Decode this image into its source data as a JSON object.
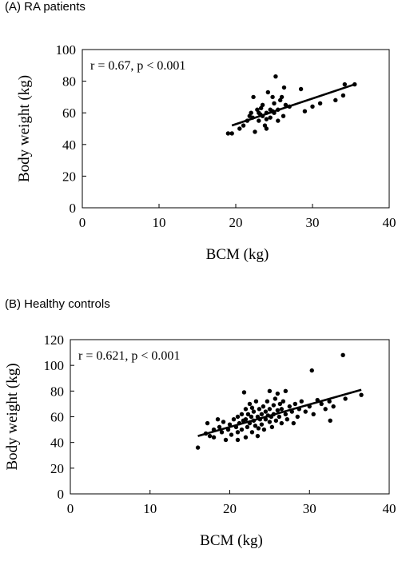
{
  "chart_data": [
    {
      "type": "scatter",
      "panel_label": "(A) RA patients",
      "xlabel": "BCM (kg)",
      "ylabel": "Body weight (kg)",
      "xlim": [
        0,
        40
      ],
      "ylim": [
        0,
        100
      ],
      "xticks": [
        0,
        10,
        20,
        30,
        40
      ],
      "yticks": [
        0,
        20,
        40,
        60,
        80,
        100
      ],
      "grid": false,
      "annotation": "r = 0.67, p < 0.001",
      "trendline": {
        "x": [
          19.5,
          35.5
        ],
        "y": [
          52,
          78
        ]
      },
      "points": [
        [
          19.0,
          47
        ],
        [
          19.5,
          47
        ],
        [
          20.5,
          50
        ],
        [
          21.0,
          52
        ],
        [
          21.5,
          55
        ],
        [
          21.8,
          58
        ],
        [
          22.0,
          60
        ],
        [
          22.2,
          57
        ],
        [
          22.5,
          48
        ],
        [
          22.8,
          62
        ],
        [
          23.0,
          60
        ],
        [
          23.0,
          55
        ],
        [
          23.3,
          63
        ],
        [
          23.5,
          58
        ],
        [
          23.5,
          65
        ],
        [
          23.8,
          52
        ],
        [
          24.0,
          50
        ],
        [
          24.0,
          56
        ],
        [
          24.0,
          60
        ],
        [
          24.2,
          73
        ],
        [
          24.5,
          62
        ],
        [
          24.5,
          57
        ],
        [
          24.8,
          70
        ],
        [
          25.0,
          60
        ],
        [
          25.0,
          66
        ],
        [
          25.2,
          83
        ],
        [
          25.5,
          55
        ],
        [
          25.5,
          62
        ],
        [
          25.8,
          68
        ],
        [
          26.0,
          70
        ],
        [
          26.2,
          58
        ],
        [
          26.3,
          76
        ],
        [
          26.5,
          65
        ],
        [
          27.0,
          64
        ],
        [
          28.5,
          75
        ],
        [
          29.0,
          61
        ],
        [
          30.0,
          64
        ],
        [
          31.0,
          66
        ],
        [
          33.0,
          68
        ],
        [
          34.0,
          71
        ],
        [
          34.2,
          78
        ],
        [
          35.5,
          78
        ],
        [
          22.3,
          70
        ],
        [
          24.8,
          61
        ],
        [
          23.2,
          59
        ]
      ]
    },
    {
      "type": "scatter",
      "panel_label": "(B) Healthy controls",
      "xlabel": "BCM (kg)",
      "ylabel": "Body weight (kg)",
      "xlim": [
        0,
        40
      ],
      "ylim": [
        0,
        120
      ],
      "xticks": [
        0,
        10,
        20,
        30,
        40
      ],
      "yticks": [
        0,
        20,
        40,
        60,
        80,
        100,
        120
      ],
      "grid": false,
      "annotation": "r = 0.621, p < 0.001",
      "trendline": {
        "x": [
          16,
          36.5
        ],
        "y": [
          45,
          81
        ]
      },
      "points": [
        [
          16.0,
          36
        ],
        [
          17.0,
          47
        ],
        [
          17.2,
          55
        ],
        [
          17.5,
          45
        ],
        [
          18.0,
          50
        ],
        [
          18.0,
          44
        ],
        [
          18.5,
          58
        ],
        [
          18.7,
          52
        ],
        [
          19.0,
          48
        ],
        [
          19.2,
          56
        ],
        [
          19.5,
          42
        ],
        [
          19.8,
          50
        ],
        [
          20.0,
          54
        ],
        [
          20.2,
          46
        ],
        [
          20.5,
          58
        ],
        [
          20.8,
          52
        ],
        [
          21.0,
          60
        ],
        [
          21.0,
          48
        ],
        [
          21.0,
          42
        ],
        [
          21.2,
          55
        ],
        [
          21.5,
          62
        ],
        [
          21.5,
          50
        ],
        [
          21.7,
          57
        ],
        [
          21.8,
          79
        ],
        [
          22.0,
          66
        ],
        [
          22.0,
          58
        ],
        [
          22.0,
          44
        ],
        [
          22.2,
          52
        ],
        [
          22.3,
          62
        ],
        [
          22.5,
          55
        ],
        [
          22.5,
          70
        ],
        [
          22.7,
          60
        ],
        [
          22.8,
          48
        ],
        [
          23.0,
          57
        ],
        [
          23.0,
          64
        ],
        [
          23.2,
          53
        ],
        [
          23.3,
          72
        ],
        [
          23.5,
          60
        ],
        [
          23.5,
          45
        ],
        [
          23.7,
          66
        ],
        [
          23.8,
          58
        ],
        [
          24.0,
          62
        ],
        [
          24.0,
          54
        ],
        [
          24.2,
          68
        ],
        [
          24.3,
          50
        ],
        [
          24.5,
          64
        ],
        [
          24.5,
          58
        ],
        [
          24.7,
          72
        ],
        [
          24.8,
          61
        ],
        [
          25.0,
          56
        ],
        [
          25.0,
          66
        ],
        [
          25.0,
          80
        ],
        [
          25.2,
          60
        ],
        [
          25.3,
          52
        ],
        [
          25.5,
          69
        ],
        [
          25.5,
          62
        ],
        [
          25.7,
          74
        ],
        [
          25.8,
          57
        ],
        [
          26.0,
          65
        ],
        [
          26.0,
          78
        ],
        [
          26.2,
          60
        ],
        [
          26.3,
          70
        ],
        [
          26.5,
          55
        ],
        [
          26.5,
          66
        ],
        [
          26.7,
          72
        ],
        [
          27.0,
          62
        ],
        [
          27.0,
          80
        ],
        [
          27.2,
          58
        ],
        [
          27.5,
          68
        ],
        [
          27.8,
          64
        ],
        [
          28.0,
          55
        ],
        [
          28.2,
          70
        ],
        [
          28.5,
          60
        ],
        [
          28.7,
          66
        ],
        [
          29.0,
          72
        ],
        [
          29.5,
          64
        ],
        [
          30.0,
          68
        ],
        [
          30.3,
          96
        ],
        [
          30.5,
          62
        ],
        [
          31.0,
          73
        ],
        [
          31.5,
          70
        ],
        [
          32.0,
          66
        ],
        [
          32.5,
          72
        ],
        [
          32.6,
          57
        ],
        [
          33.0,
          68
        ],
        [
          34.2,
          108
        ],
        [
          34.5,
          74
        ],
        [
          36.5,
          77
        ],
        [
          22.8,
          67
        ],
        [
          23.6,
          51
        ]
      ]
    }
  ]
}
